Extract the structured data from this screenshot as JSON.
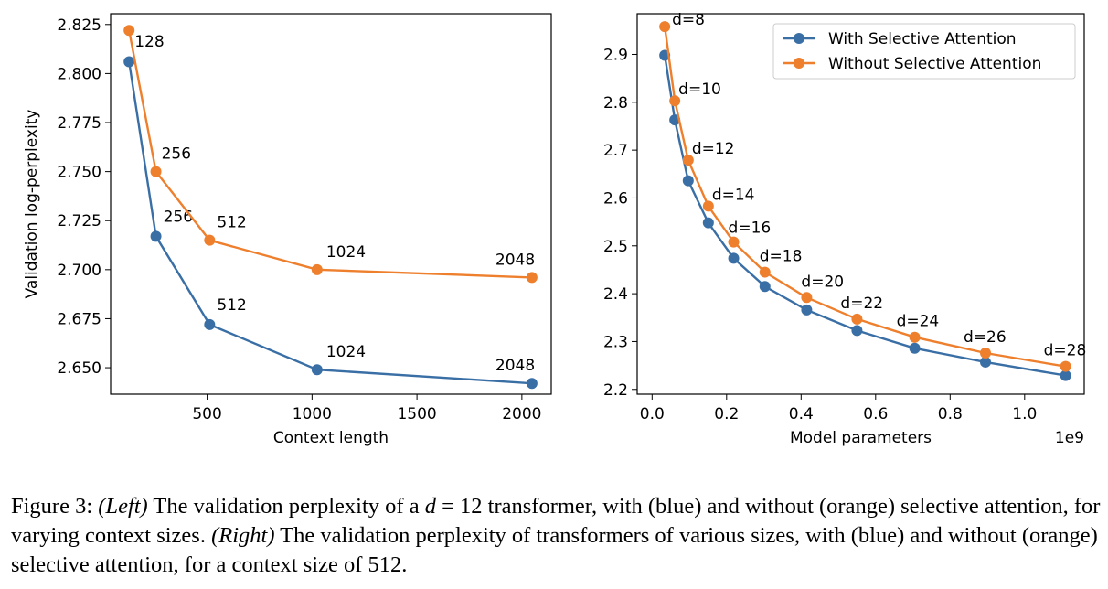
{
  "colors": {
    "with": "#3a6fa6",
    "without": "#ee7f2d"
  },
  "chart_data": [
    {
      "type": "line",
      "title": "",
      "xlabel": "Context length",
      "ylabel": "Validation log-perplexity",
      "xlim": [
        40,
        2140
      ],
      "ylim": [
        2.6365,
        2.8305
      ],
      "xticks": [
        500,
        1000,
        1500,
        2000
      ],
      "xtick_labels": [
        "500",
        "1000",
        "1500",
        "2000"
      ],
      "yticks": [
        2.65,
        2.675,
        2.7,
        2.725,
        2.75,
        2.775,
        2.8,
        2.825
      ],
      "ytick_labels": [
        "2.650",
        "2.675",
        "2.700",
        "2.725",
        "2.750",
        "2.775",
        "2.800",
        "2.825"
      ],
      "series": [
        {
          "name": "With Selective Attention",
          "color_key": "with",
          "x": [
            128,
            256,
            512,
            1024,
            2048
          ],
          "y": [
            2.806,
            2.717,
            2.672,
            2.649,
            2.642
          ],
          "labels": [
            "",
            "256",
            "512",
            "1024",
            "2048"
          ]
        },
        {
          "name": "Without Selective Attention",
          "color_key": "without",
          "x": [
            128,
            256,
            512,
            1024,
            2048
          ],
          "y": [
            2.822,
            2.75,
            2.715,
            2.7,
            2.696
          ],
          "labels": [
            "128",
            "256",
            "512",
            "1024",
            "2048"
          ]
        }
      ],
      "legend": null
    },
    {
      "type": "line",
      "title": "",
      "xlabel": "Model parameters",
      "ylabel": "",
      "x_offset_label": "1e9",
      "xlim": [
        -0.04,
        1.16
      ],
      "ylim": [
        2.19,
        2.985
      ],
      "xticks": [
        0.0,
        0.2,
        0.4,
        0.6,
        0.8,
        1.0
      ],
      "xtick_labels": [
        "0.0",
        "0.2",
        "0.4",
        "0.6",
        "0.8",
        "1.0"
      ],
      "yticks": [
        2.2,
        2.3,
        2.4,
        2.5,
        2.6,
        2.7,
        2.8,
        2.9
      ],
      "ytick_labels": [
        "2.2",
        "2.3",
        "2.4",
        "2.5",
        "2.6",
        "2.7",
        "2.8",
        "2.9"
      ],
      "series": [
        {
          "name": "With Selective Attention",
          "color_key": "with",
          "x": [
            0.034,
            0.061,
            0.097,
            0.151,
            0.219,
            0.303,
            0.415,
            0.55,
            0.705,
            0.895,
            1.11
          ],
          "y": [
            2.898,
            2.763,
            2.636,
            2.548,
            2.474,
            2.415,
            2.366,
            2.323,
            2.286,
            2.257,
            2.229
          ],
          "labels": []
        },
        {
          "name": "Without Selective Attention",
          "color_key": "without",
          "x": [
            0.034,
            0.061,
            0.097,
            0.151,
            0.219,
            0.303,
            0.415,
            0.55,
            0.705,
            0.895,
            1.11
          ],
          "y": [
            2.958,
            2.803,
            2.679,
            2.583,
            2.508,
            2.445,
            2.392,
            2.347,
            2.309,
            2.276,
            2.248
          ],
          "labels": [
            "d=8",
            "d=10",
            "d=12",
            "d=14",
            "d=16",
            "d=18",
            "d=20",
            "d=22",
            "d=24",
            "d=26",
            "d=28"
          ]
        }
      ],
      "legend": {
        "position": "top-right",
        "entries": [
          "With Selective Attention",
          "Without Selective Attention"
        ]
      }
    }
  ],
  "caption": {
    "prefix": "Figure 3: ",
    "left_tag": "(Left)",
    "part1a": " The validation perplexity of a ",
    "math_var": "d",
    "math_eq": " = 12",
    "part1b": " transformer, with (blue) and without (orange) selective attention, for varying context sizes. ",
    "right_tag": "(Right)",
    "part2": " The validation perplexity of transformers of various sizes, with (blue) and without (orange) selective attention, for a context size of 512."
  }
}
